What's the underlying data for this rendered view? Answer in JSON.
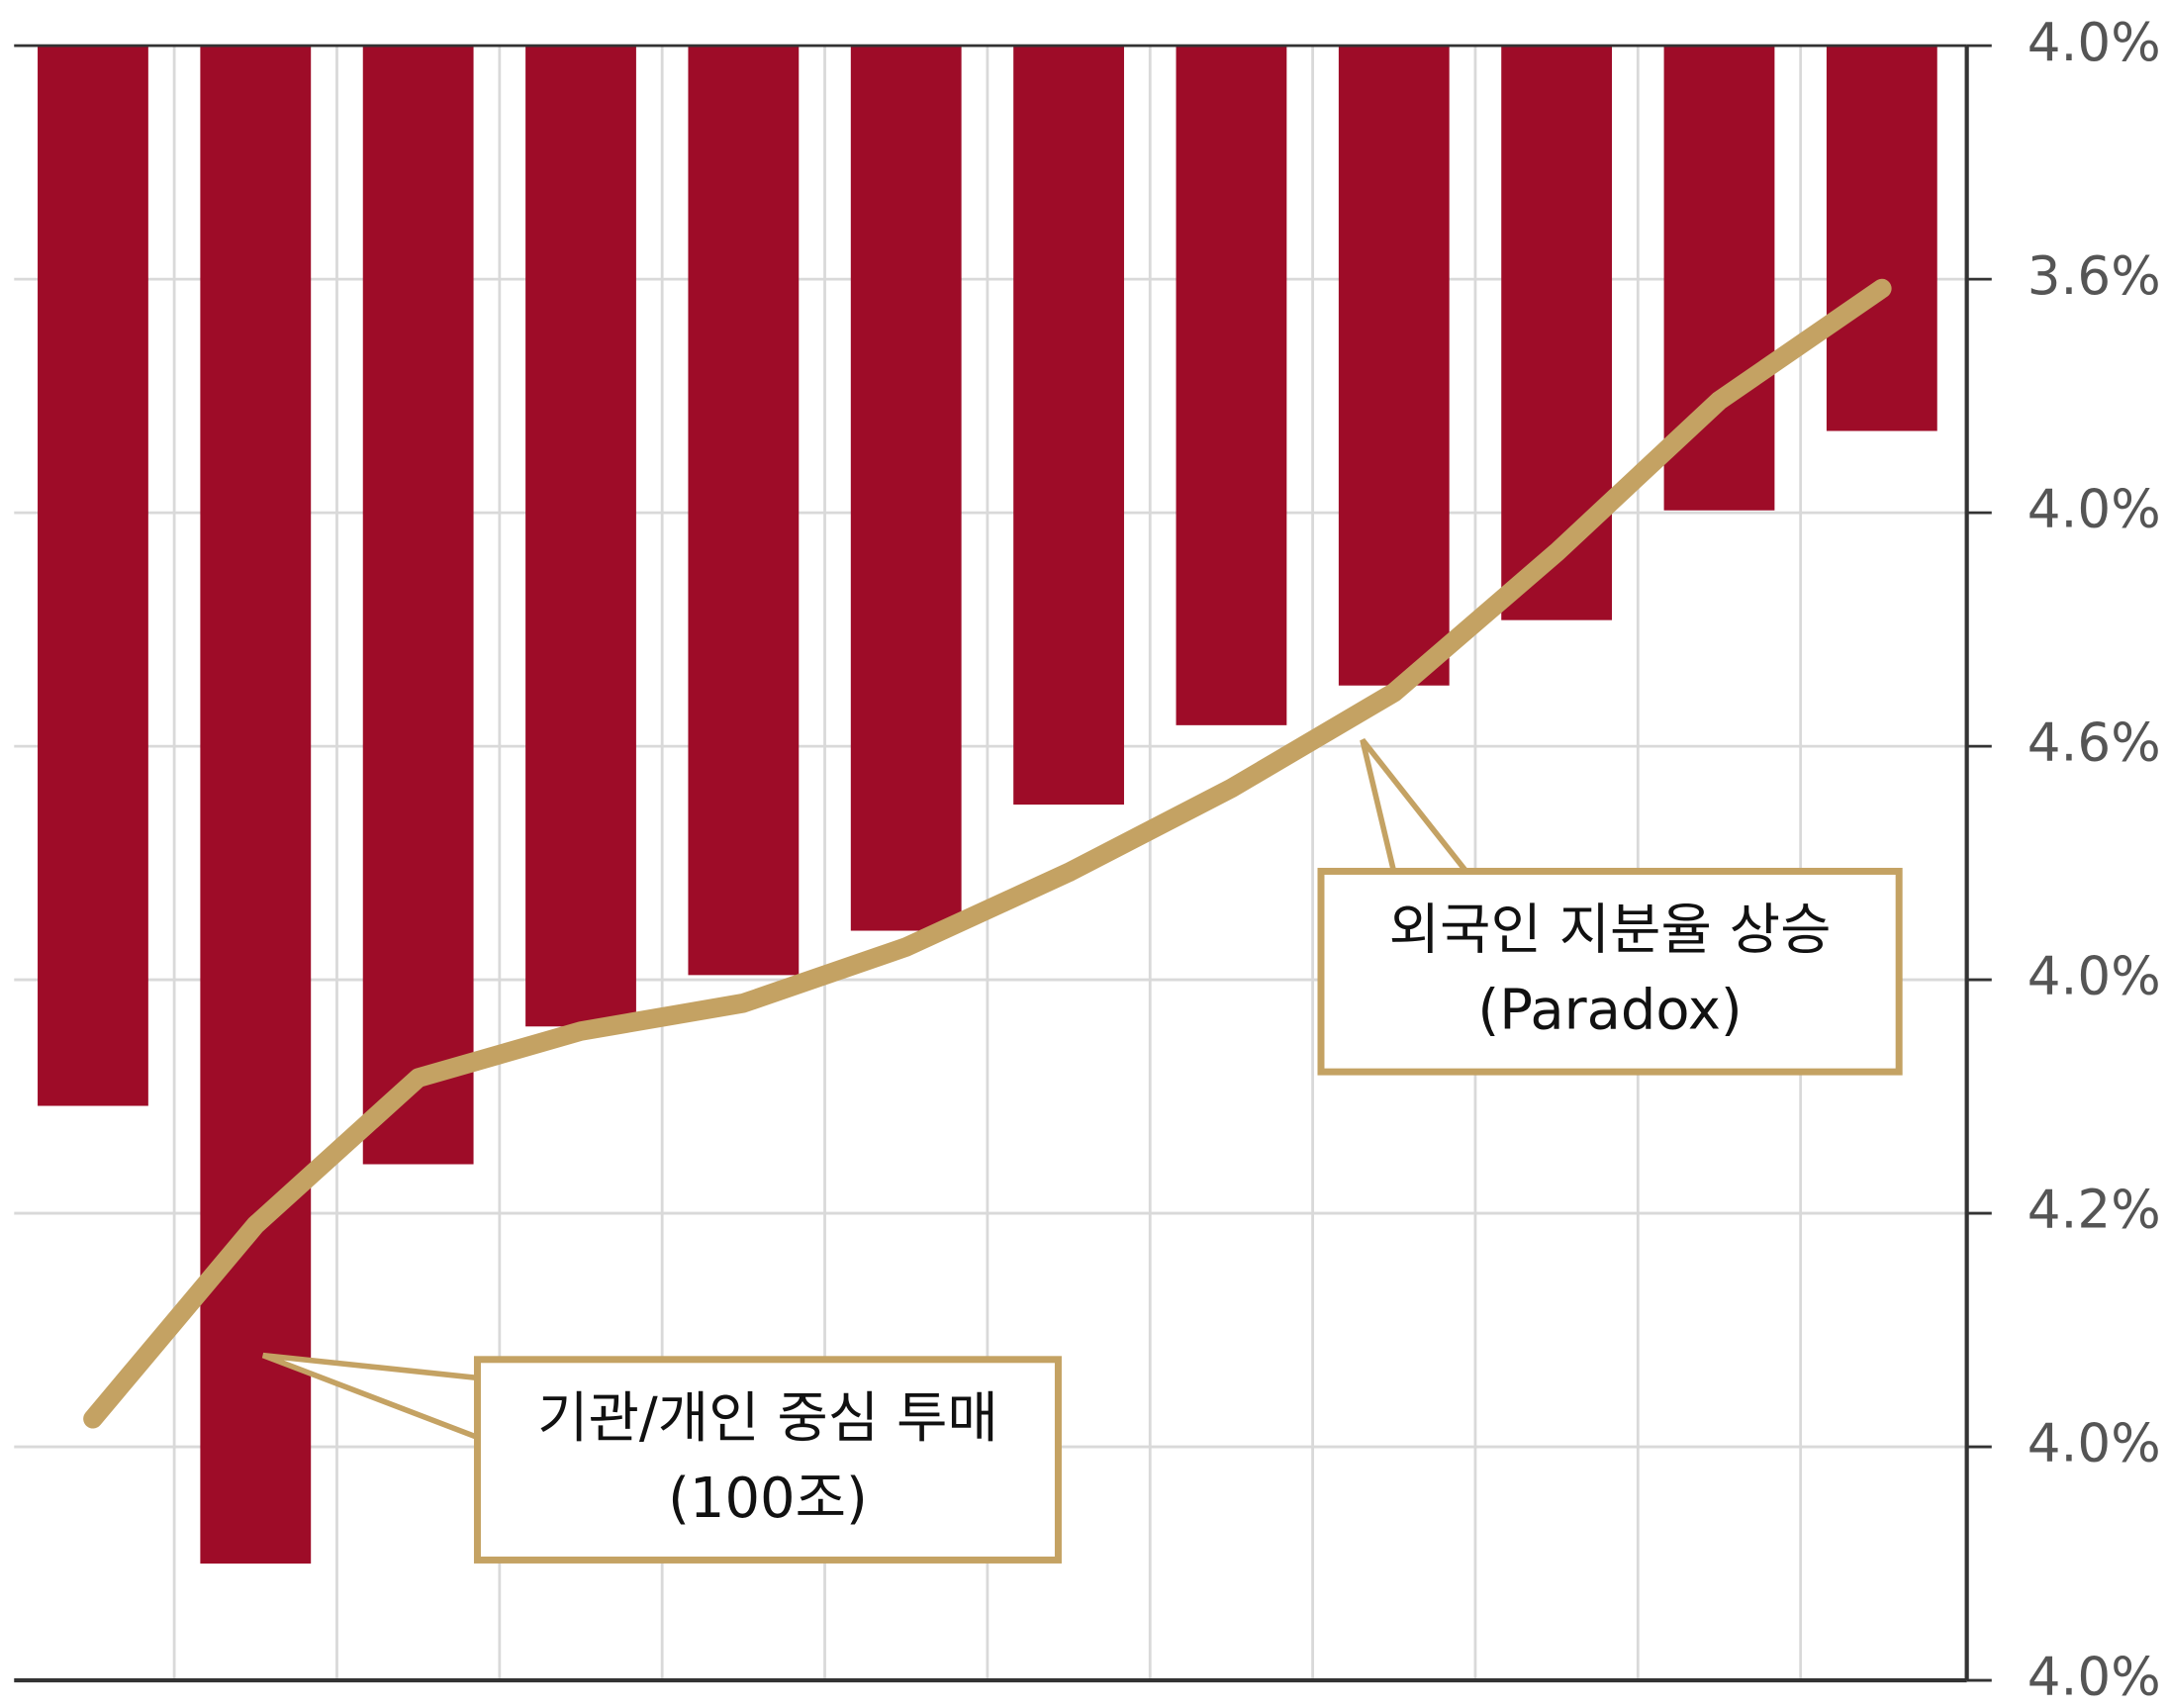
{
  "chart_data": {
    "type": "bar",
    "categories": [
      null,
      null,
      null,
      null,
      null,
      null,
      null,
      null,
      null,
      null,
      null,
      null
    ],
    "series": [
      {
        "type": "bar",
        "color": "#9e0c28",
        "values": [
          2.46,
          0.5,
          2.21,
          2.8,
          3.02,
          3.21,
          3.75,
          4.09,
          4.26,
          4.54,
          5.01,
          5.35
        ]
      },
      {
        "type": "line",
        "color": "#c4a263",
        "values": [
          1.12,
          1.95,
          2.58,
          2.78,
          2.9,
          3.14,
          3.46,
          3.82,
          4.23,
          4.83,
          5.48,
          5.96
        ]
      }
    ],
    "ylim": [
      0,
      7
    ],
    "yticks": [
      {
        "value": 7,
        "label": "4.0%"
      },
      {
        "value": 6,
        "label": "3.6%"
      },
      {
        "value": 5,
        "label": "4.0%"
      },
      {
        "value": 4,
        "label": "4.6%"
      },
      {
        "value": 3,
        "label": "4.0%"
      },
      {
        "value": 2,
        "label": "4.2%"
      },
      {
        "value": 1,
        "label": "4.0%"
      },
      {
        "value": 0,
        "label": "4.0%"
      }
    ],
    "grid": true,
    "annotations": [
      {
        "lines": [
          "기관/개인 중심 투매",
          "(100조)"
        ]
      },
      {
        "lines": [
          "외국인 지분율 상승",
          "(Paradox)"
        ]
      }
    ]
  }
}
